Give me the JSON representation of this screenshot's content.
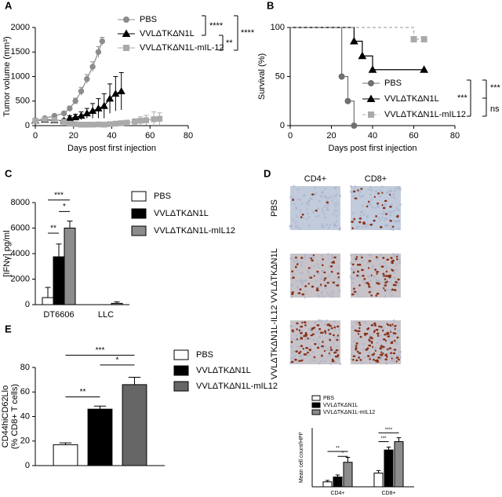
{
  "chart_data": [
    {
      "panel": "A",
      "type": "line",
      "x_label": "Days post first injection",
      "y_label": "Tumor volume (mm³)",
      "xlim": [
        0,
        80
      ],
      "xticks": [
        0,
        20,
        40,
        60,
        80
      ],
      "ylim": [
        0,
        2000
      ],
      "yticks": [
        0,
        500,
        1000,
        1500,
        2000
      ],
      "series": [
        {
          "name": "PBS",
          "color": "#8c8c8c",
          "marker": "circle",
          "x": [
            0,
            5,
            10,
            15,
            18,
            21,
            24,
            27,
            30,
            33,
            35
          ],
          "values": [
            100,
            150,
            200,
            250,
            350,
            500,
            700,
            950,
            1200,
            1500,
            1720
          ],
          "errors": [
            20,
            30,
            30,
            40,
            50,
            60,
            80,
            90,
            100,
            110,
            80
          ]
        },
        {
          "name": "VVLΔTKΔN1L",
          "color": "#000000",
          "marker": "triangle",
          "x": [
            0,
            5,
            10,
            15,
            18,
            21,
            24,
            27,
            30,
            33,
            36,
            39,
            42,
            45
          ],
          "values": [
            100,
            120,
            110,
            100,
            150,
            170,
            200,
            250,
            300,
            350,
            400,
            550,
            650,
            700
          ],
          "errors": [
            20,
            30,
            30,
            40,
            50,
            60,
            80,
            100,
            150,
            200,
            250,
            300,
            350,
            380
          ]
        },
        {
          "name": "VVLΔTKΔN1L-mIL-12",
          "color": "#aaaaaa",
          "marker": "square",
          "x": [
            0,
            5,
            10,
            15,
            18,
            21,
            24,
            27,
            30,
            33,
            36,
            39,
            42,
            45,
            48,
            52,
            55,
            58,
            62,
            65
          ],
          "values": [
            100,
            130,
            120,
            80,
            40,
            30,
            20,
            20,
            20,
            25,
            20,
            30,
            40,
            50,
            60,
            80,
            100,
            110,
            130,
            140
          ],
          "errors": [
            20,
            30,
            30,
            20,
            15,
            10,
            10,
            10,
            10,
            10,
            10,
            20,
            30,
            40,
            50,
            60,
            80,
            100,
            150,
            120
          ]
        }
      ],
      "annotations": [
        "****",
        "**",
        "****"
      ]
    },
    {
      "panel": "B",
      "type": "step",
      "x_label": "Days post first injection",
      "y_label": "Survival (%)",
      "xlim": [
        0,
        80
      ],
      "xticks": [
        0,
        20,
        40,
        60,
        80
      ],
      "ylim": [
        0,
        100
      ],
      "yticks": [
        0,
        50,
        100
      ],
      "series": [
        {
          "name": "PBS",
          "color": "#707070",
          "marker": "circle",
          "x": [
            0,
            25,
            28,
            31
          ],
          "values": [
            100,
            50,
            25,
            0
          ]
        },
        {
          "name": "VVLΔTKΔN1L",
          "color": "#000000",
          "marker": "triangle",
          "x": [
            0,
            31,
            35,
            40,
            65
          ],
          "values": [
            100,
            86,
            71,
            57,
            57
          ]
        },
        {
          "name": "VVLΔTKΔN1L-mIL12",
          "color": "#aaaaaa",
          "marker": "square",
          "dash": true,
          "x": [
            0,
            60,
            65
          ],
          "values": [
            100,
            88,
            88
          ]
        }
      ],
      "annotations": [
        "***",
        "***",
        "ns"
      ]
    },
    {
      "panel": "C",
      "type": "bar",
      "y_label": "[IFNγ] pg/ml",
      "categories": [
        "DT6606",
        "LLC"
      ],
      "ylim": [
        0,
        8000
      ],
      "yticks": [
        0,
        2000,
        4000,
        6000,
        8000
      ],
      "series": [
        {
          "name": "PBS",
          "color": "#ffffff",
          "values": [
            550,
            0
          ],
          "errors": [
            800,
            0
          ]
        },
        {
          "name": "VVLΔTKΔN1L",
          "color": "#000000",
          "values": [
            3750,
            0
          ],
          "errors": [
            1000,
            0
          ]
        },
        {
          "name": "VVLΔTKΔN1L-mIL12",
          "color": "#8c8c8c",
          "values": [
            6000,
            100
          ],
          "errors": [
            550,
            120
          ]
        }
      ],
      "annotations": [
        "**",
        "*",
        "***"
      ]
    },
    {
      "panel": "D",
      "type": "image-grid",
      "column_labels": [
        "CD4+",
        "CD8+"
      ],
      "row_labels": [
        "PBS",
        "VVLΔTKΔN1L",
        "VVLΔTKΔN1L-IL12"
      ]
    },
    {
      "type": "bar",
      "y_label": "Mean cell count/HPF",
      "categories": [
        "CD4+",
        "CD8+"
      ],
      "ylim": [
        0,
        120
      ],
      "series": [
        {
          "name": "PBS",
          "color": "#ffffff",
          "values": [
            10,
            28
          ],
          "errors": [
            3,
            5
          ]
        },
        {
          "name": "VVLΔTKΔN1L",
          "color": "#000000",
          "values": [
            20,
            75
          ],
          "errors": [
            4,
            6
          ]
        },
        {
          "name": "VVLΔTKΔN1L-mIL12",
          "color": "#8c8c8c",
          "values": [
            50,
            92
          ],
          "errors": [
            10,
            8
          ]
        }
      ],
      "annotations": [
        "**",
        "*",
        "***",
        "****"
      ]
    },
    {
      "panel": "E",
      "type": "bar",
      "y_label": "CD44hiCD62Llo",
      "y_label_2": "(% CD8+ T cells)",
      "categories": [
        null
      ],
      "ylim": [
        0,
        80
      ],
      "yticks": [
        0,
        20,
        40,
        60,
        80
      ],
      "series": [
        {
          "name": "PBS",
          "color": "#ffffff",
          "values": [
            17
          ],
          "errors": [
            1.5
          ]
        },
        {
          "name": "VVLΔTKΔN1L",
          "color": "#000000",
          "values": [
            46
          ],
          "errors": [
            2.5
          ]
        },
        {
          "name": "VVLΔTKΔN1L-mIL12",
          "color": "#666666",
          "values": [
            66
          ],
          "errors": [
            6
          ]
        }
      ],
      "annotations": [
        "**",
        "*",
        "***"
      ]
    }
  ]
}
